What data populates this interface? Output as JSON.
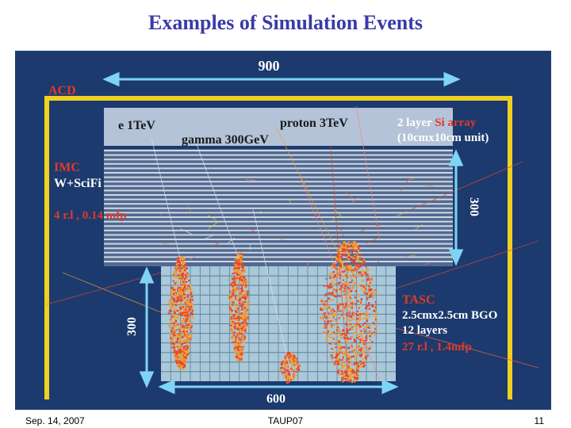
{
  "slide": {
    "title": "Examples of Simulation Events",
    "footer_left": "Sep. 14, 2007",
    "footer_center": "TAUP07",
    "footer_right": "11"
  },
  "figure": {
    "dim_top": "900",
    "dim_bottom": "600",
    "dim_right": "300",
    "dim_left": "300",
    "acd_label": "ACD",
    "event_e": "e 1TeV",
    "event_proton": "proton 3TeV",
    "event_gamma": "gamma 300GeV",
    "si_label_a": "2 layer ",
    "si_label_b": "Si array",
    "si_label_c": "(10cmx10cm unit)",
    "imc_label": "IMC",
    "imc_material": "W+SciFi",
    "imc_depth": "4 r.l , 0.14 mfp",
    "tasc_label": "TASC",
    "tasc_size": "2.5cmx2.5cm BGO",
    "tasc_layers": "12 layers",
    "tasc_depth": "27 r.l , 1.4mfp",
    "colors": {
      "background": "#1c3a6e",
      "frame": "#f0d020",
      "red_label": "#e03a28",
      "shower": "#e8462c",
      "detector": "#a9c8da"
    }
  }
}
